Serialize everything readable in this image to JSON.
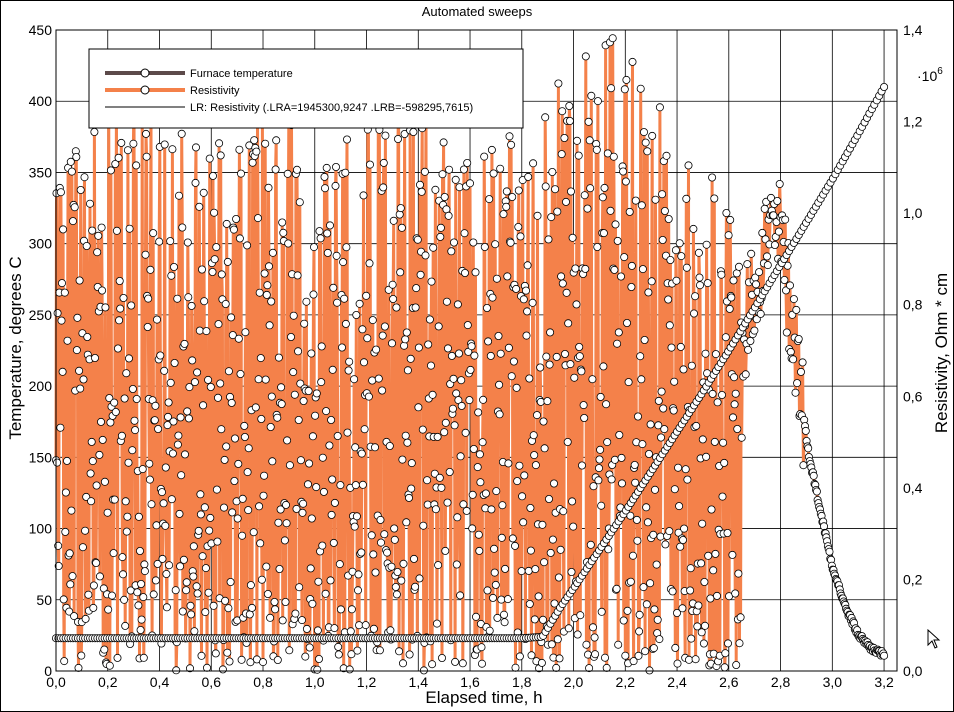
{
  "chart_data": {
    "type": "line",
    "title": "Automated sweeps",
    "xlabel": "Elapsed time, h",
    "ylabel_left": "Temperature, degrees C",
    "ylabel_right": "Resistivity, Ohm * cm",
    "right_axis_multiplier": "·10",
    "right_axis_exponent": "6",
    "xlim": [
      0,
      3.25
    ],
    "ylim_left": [
      0,
      450
    ],
    "ylim_right": [
      0,
      1.4
    ],
    "x_ticks": [
      "0,0",
      "0,2",
      "0,4",
      "0,6",
      "0,8",
      "1,0",
      "1,2",
      "1,4",
      "1,6",
      "1,8",
      "2,0",
      "2,2",
      "2,4",
      "2,6",
      "2,8",
      "3,0",
      "3,2"
    ],
    "x_tick_values": [
      0,
      0.2,
      0.4,
      0.6,
      0.8,
      1.0,
      1.2,
      1.4,
      1.6,
      1.8,
      2.0,
      2.2,
      2.4,
      2.6,
      2.8,
      3.0,
      3.2
    ],
    "y_left_ticks": [
      "0",
      "50",
      "100",
      "150",
      "200",
      "250",
      "300",
      "350",
      "400",
      "450"
    ],
    "y_left_tick_values": [
      0,
      50,
      100,
      150,
      200,
      250,
      300,
      350,
      400,
      450
    ],
    "y_right_ticks": [
      "0,0",
      "0,2",
      "0,4",
      "0,6",
      "0,8",
      "1,0",
      "1,2",
      "1,4"
    ],
    "y_right_tick_values": [
      0,
      0.2,
      0.4,
      0.6,
      0.8,
      1.0,
      1.2,
      1.4
    ],
    "grid": true,
    "legend_position": "top-left",
    "legend": [
      {
        "label": "Furnace temperature",
        "color": "#5c4a4a",
        "style": "thick-line-markers"
      },
      {
        "label": "Resistivity",
        "color": "#f4814a",
        "style": "thick-line-markers"
      },
      {
        "label": "LR: Resistivity (.LRA=1945300,9247 .LRB=-598295,7615)",
        "color": "#000000",
        "style": "thin-line"
      }
    ],
    "series": [
      {
        "name": "Furnace temperature",
        "axis": "left",
        "color": "#5c4a4a",
        "x": [
          0.0,
          0.2,
          0.4,
          0.6,
          0.8,
          1.0,
          1.2,
          1.4,
          1.6,
          1.8,
          1.88,
          1.95,
          2.0,
          2.1,
          2.2,
          2.3,
          2.4,
          2.5,
          2.6,
          2.7,
          2.8,
          2.9,
          3.0,
          3.1,
          3.2
        ],
        "y": [
          23,
          23,
          23,
          23,
          23,
          23,
          23,
          23,
          23,
          23,
          24,
          45,
          58,
          85,
          112,
          140,
          168,
          196,
          225,
          255,
          285,
          315,
          345,
          377,
          410
        ]
      },
      {
        "name": "Resistivity",
        "axis": "right",
        "color": "#f4814a",
        "envelope_x": [
          0.0,
          0.2,
          0.4,
          0.6,
          0.8,
          1.0,
          1.2,
          1.4,
          1.6,
          1.8,
          2.0,
          2.2,
          2.4,
          2.6,
          2.65
        ],
        "envelope_y_max": [
          1.05,
          1.3,
          1.2,
          1.15,
          1.25,
          1.15,
          1.2,
          1.3,
          1.1,
          1.2,
          1.35,
          1.4,
          1.15,
          1.05,
          1.0
        ],
        "tail_x": [
          2.65,
          2.7,
          2.75,
          2.8,
          2.85,
          2.88,
          2.9,
          2.95,
          3.0,
          3.05,
          3.1,
          3.15,
          3.2
        ],
        "tail_y": [
          0.7,
          0.85,
          0.95,
          0.95,
          0.75,
          0.62,
          0.5,
          0.36,
          0.23,
          0.14,
          0.08,
          0.05,
          0.035
        ]
      }
    ]
  }
}
